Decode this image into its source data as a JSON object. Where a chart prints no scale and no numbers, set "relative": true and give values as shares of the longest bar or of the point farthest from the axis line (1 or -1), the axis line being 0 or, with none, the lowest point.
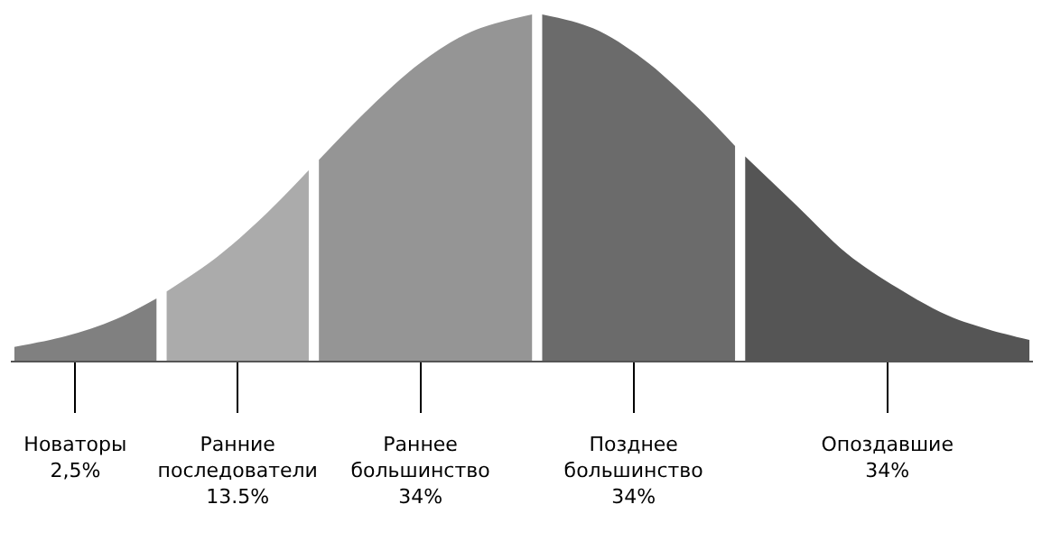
{
  "chart_data": {
    "type": "area",
    "relative": true,
    "tick_labels": "x",
    "categories": [
      null,
      null,
      null,
      null,
      null,
      null,
      "Новаторы\n2,5%",
      null,
      null,
      null,
      null,
      null,
      null,
      null,
      null,
      null,
      null,
      null,
      null,
      null,
      null,
      null,
      "Ранние\nпоследователи\n13.5%",
      null,
      null,
      null,
      null,
      null,
      null,
      null,
      null,
      null,
      null,
      null,
      null,
      null,
      null,
      null,
      null,
      null,
      "Раннее\nбольшинство\n34%",
      null,
      null,
      null,
      null,
      null,
      null,
      null,
      null,
      null,
      null,
      null,
      null,
      null,
      null,
      null,
      null,
      null,
      null,
      null,
      null,
      "Позднее\nбольшинство\n34%",
      null,
      null,
      null,
      null,
      null,
      null,
      null,
      null,
      null,
      null,
      null,
      null,
      null,
      null,
      null,
      null,
      null,
      null,
      null,
      null,
      null,
      null,
      null,
      null,
      "Опоздавшие\n34%",
      null,
      null,
      null,
      null,
      null,
      null,
      null,
      null,
      null,
      null,
      null,
      null,
      null,
      null
    ],
    "series": [
      {
        "color": "#808080",
        "values": [
          0.04,
          null,
          null,
          null,
          null,
          0.07,
          null,
          null,
          null,
          null,
          0.12,
          null,
          null,
          null,
          0.18,
          null,
          null,
          null,
          null,
          null,
          null,
          null,
          null,
          null,
          null,
          null,
          null,
          null,
          null,
          null,
          null,
          null,
          null,
          null,
          null,
          null,
          null,
          null,
          null,
          null,
          null,
          null,
          null,
          null,
          null,
          null,
          null,
          null,
          null,
          null,
          null,
          null,
          null,
          null,
          null,
          null,
          null,
          null,
          null,
          null,
          null,
          null,
          null,
          null,
          null,
          null,
          null,
          null,
          null,
          null,
          null,
          null,
          null,
          null,
          null,
          null,
          null,
          null,
          null,
          null,
          null,
          null,
          null,
          null,
          null,
          null,
          null,
          null,
          null,
          null,
          null,
          null,
          null,
          null,
          null,
          null,
          null,
          null,
          null,
          null,
          null
        ]
      },
      {
        "color": "#ababab",
        "values": [
          null,
          null,
          null,
          null,
          null,
          null,
          null,
          null,
          null,
          null,
          null,
          null,
          null,
          null,
          null,
          0.2,
          null,
          null,
          null,
          null,
          0.3,
          null,
          null,
          null,
          null,
          0.43,
          null,
          null,
          null,
          0.55,
          null,
          null,
          null,
          null,
          null,
          null,
          null,
          null,
          null,
          null,
          null,
          null,
          null,
          null,
          null,
          null,
          null,
          null,
          null,
          null,
          null,
          null,
          null,
          null,
          null,
          null,
          null,
          null,
          null,
          null,
          null,
          null,
          null,
          null,
          null,
          null,
          null,
          null,
          null,
          null,
          null,
          null,
          null,
          null,
          null,
          null,
          null,
          null,
          null,
          null,
          null,
          null,
          null,
          null,
          null,
          null,
          null,
          null,
          null,
          null,
          null,
          null,
          null,
          null,
          null,
          null,
          null,
          null,
          null,
          null,
          null
        ]
      },
      {
        "color": "#959595",
        "values": [
          null,
          null,
          null,
          null,
          null,
          null,
          null,
          null,
          null,
          null,
          null,
          null,
          null,
          null,
          null,
          null,
          null,
          null,
          null,
          null,
          null,
          null,
          null,
          null,
          null,
          null,
          null,
          null,
          null,
          null,
          0.58,
          null,
          null,
          null,
          null,
          0.73,
          null,
          null,
          null,
          null,
          0.86,
          null,
          null,
          null,
          null,
          0.95,
          null,
          null,
          null,
          null,
          null,
          1.0,
          null,
          null,
          null,
          null,
          null,
          null,
          null,
          null,
          null,
          null,
          null,
          null,
          null,
          null,
          null,
          null,
          null,
          null,
          null,
          null,
          null,
          null,
          null,
          null,
          null,
          null,
          null,
          null,
          null,
          null,
          null,
          null,
          null,
          null,
          null,
          null,
          null,
          null,
          null,
          null,
          null,
          null,
          null,
          null,
          null,
          null,
          null,
          null,
          null
        ]
      },
      {
        "color": "#6b6b6b",
        "values": [
          null,
          null,
          null,
          null,
          null,
          null,
          null,
          null,
          null,
          null,
          null,
          null,
          null,
          null,
          null,
          null,
          null,
          null,
          null,
          null,
          null,
          null,
          null,
          null,
          null,
          null,
          null,
          null,
          null,
          null,
          null,
          null,
          null,
          null,
          null,
          null,
          null,
          null,
          null,
          null,
          null,
          null,
          null,
          null,
          null,
          null,
          null,
          null,
          null,
          null,
          null,
          null,
          1.0,
          null,
          null,
          null,
          null,
          0.96,
          null,
          null,
          null,
          null,
          0.87,
          null,
          null,
          null,
          null,
          0.74,
          null,
          null,
          null,
          0.62,
          null,
          null,
          null,
          null,
          null,
          null,
          null,
          null,
          null,
          null,
          null,
          null,
          null,
          null,
          null,
          null,
          null,
          null,
          null,
          null,
          null,
          null,
          null,
          null,
          null,
          null,
          null,
          null,
          null
        ]
      },
      {
        "color": "#555555",
        "values": [
          null,
          null,
          null,
          null,
          null,
          null,
          null,
          null,
          null,
          null,
          null,
          null,
          null,
          null,
          null,
          null,
          null,
          null,
          null,
          null,
          null,
          null,
          null,
          null,
          null,
          null,
          null,
          null,
          null,
          null,
          null,
          null,
          null,
          null,
          null,
          null,
          null,
          null,
          null,
          null,
          null,
          null,
          null,
          null,
          null,
          null,
          null,
          null,
          null,
          null,
          null,
          null,
          null,
          null,
          null,
          null,
          null,
          null,
          null,
          null,
          null,
          null,
          null,
          null,
          null,
          null,
          null,
          null,
          null,
          null,
          null,
          null,
          0.59,
          null,
          null,
          null,
          null,
          0.45,
          null,
          null,
          null,
          null,
          0.31,
          null,
          null,
          null,
          null,
          0.21,
          null,
          null,
          null,
          null,
          0.13,
          null,
          null,
          null,
          0.09,
          null,
          null,
          null,
          0.06
        ]
      }
    ]
  }
}
